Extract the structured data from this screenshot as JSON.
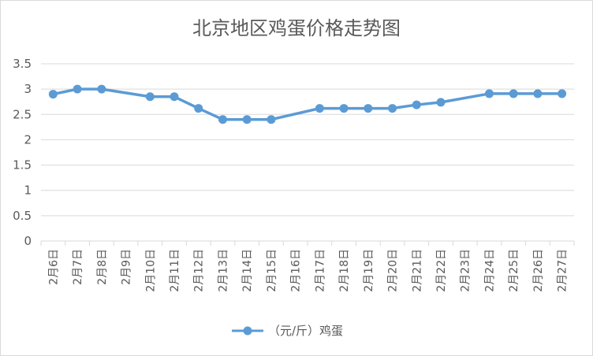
{
  "chart_data": {
    "type": "line",
    "title": "北京地区鸡蛋价格走势图",
    "categories": [
      "2月6日",
      "2月7日",
      "2月8日",
      "2月9日",
      "2月10日",
      "2月11日",
      "2月12日",
      "2月13日",
      "2月14日",
      "2月15日",
      "2月16日",
      "2月17日",
      "2月18日",
      "2月19日",
      "2月20日",
      "2月21日",
      "2月22日",
      "2月23日",
      "2月24日",
      "2月25日",
      "2月26日",
      "2月27日"
    ],
    "series": [
      {
        "name": "（元/斤）鸡蛋",
        "values": [
          2.9,
          3.0,
          3.0,
          null,
          2.85,
          2.85,
          2.62,
          2.4,
          2.4,
          2.4,
          null,
          2.62,
          2.62,
          2.62,
          2.62,
          2.69,
          2.74,
          null,
          2.91,
          2.91,
          2.91,
          2.91
        ]
      }
    ],
    "ylim": [
      0,
      3.5
    ],
    "yticks": [
      "0",
      "0.5",
      "1",
      "1.5",
      "2",
      "2.5",
      "3",
      "3.5"
    ],
    "grid": true,
    "legend_position": "bottom",
    "colors": {
      "series": "#5b9bd5",
      "grid": "#d9d9d9",
      "text": "#595959"
    }
  }
}
